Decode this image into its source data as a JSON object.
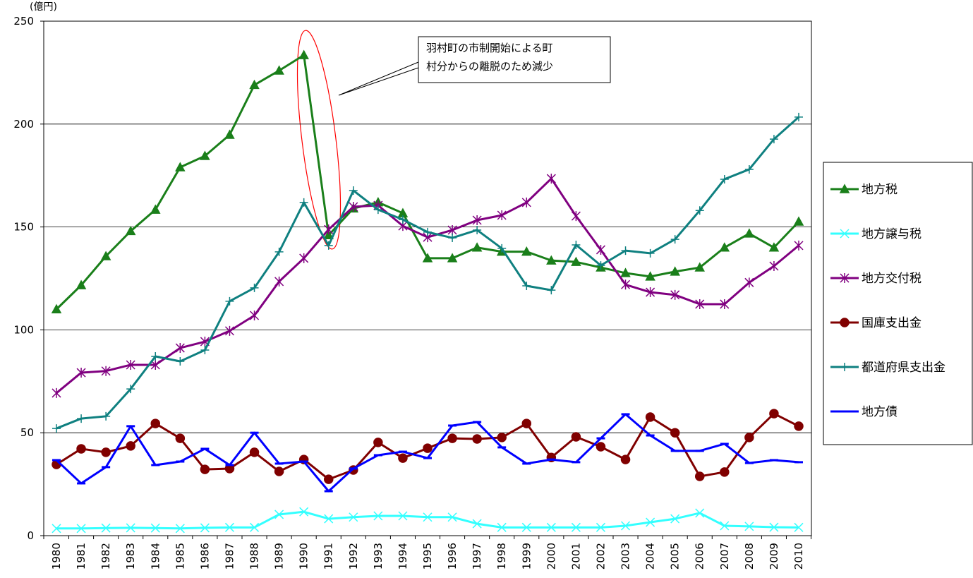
{
  "chart_data": {
    "type": "line",
    "y_label": "(億円)",
    "annotation": [
      "羽村町の市制開始による町",
      "村分からの離脱のため減少"
    ],
    "categories": [
      "1980",
      "1981",
      "1982",
      "1983",
      "1984",
      "1985",
      "1986",
      "1987",
      "1988",
      "1989",
      "1990",
      "1991",
      "1992",
      "1993",
      "1994",
      "1995",
      "1996",
      "1997",
      "1998",
      "1999",
      "2000",
      "2001",
      "2002",
      "2003",
      "2004",
      "2005",
      "2006",
      "2007",
      "2008",
      "2009",
      "2010"
    ],
    "ylim": [
      0,
      250
    ],
    "yticks": [
      0,
      50,
      100,
      150,
      200,
      250
    ],
    "grid": true,
    "legend": "right",
    "series": [
      {
        "name": "地方税",
        "color": "#1a7f1a",
        "marker": "triangle",
        "values": [
          110,
          121.7,
          135.8,
          148,
          158.4,
          179,
          184.5,
          194.8,
          219,
          226,
          233.5,
          146,
          159,
          162,
          156.7,
          134.8,
          134.8,
          140,
          138,
          138,
          133.7,
          133,
          130.3,
          127.6,
          125.9,
          128.3,
          130.3,
          140,
          146.8,
          140,
          152.6
        ]
      },
      {
        "name": "地方譲与税",
        "color": "#33ffff",
        "marker": "x",
        "values": [
          3.5,
          3.5,
          3.7,
          3.8,
          3.7,
          3.5,
          3.8,
          4,
          4,
          10.3,
          11.6,
          8.2,
          9,
          9.6,
          9.6,
          9,
          9,
          5.8,
          4,
          4,
          4,
          4,
          4,
          4.8,
          6.5,
          8.2,
          11,
          4.8,
          4.5,
          4.1,
          4
        ]
      },
      {
        "name": "地方交付税",
        "color": "#800080",
        "marker": "asterisk",
        "values": [
          69.3,
          79.2,
          80,
          83,
          83,
          91.2,
          94.3,
          99.5,
          107,
          123.5,
          134.8,
          148.8,
          159.8,
          160.5,
          150.5,
          145,
          148.5,
          153.3,
          155.7,
          161.9,
          173.5,
          155.3,
          138.9,
          122,
          118.3,
          117,
          112.5,
          112.5,
          123,
          131,
          141
        ]
      },
      {
        "name": "国庫支出金",
        "color": "#800000",
        "marker": "circle",
        "values": [
          34.6,
          42.2,
          40.5,
          43.6,
          54.5,
          47.3,
          32.2,
          32.6,
          40.5,
          31.2,
          37,
          27.4,
          31.9,
          45.3,
          37.7,
          42.5,
          47.3,
          47,
          47.7,
          54.5,
          38,
          48,
          43.2,
          37,
          57.6,
          50,
          28.8,
          30.9,
          47.7,
          59.3,
          53.2
        ]
      },
      {
        "name": "都道府県支出金",
        "color": "#0f8080",
        "marker": "plus",
        "values": [
          52.1,
          56.9,
          58,
          71.3,
          87.1,
          84.7,
          90.2,
          113.9,
          120.4,
          137.9,
          161.9,
          141,
          167.7,
          158.4,
          153.6,
          147.5,
          144.7,
          148.5,
          139.6,
          121.4,
          119.3,
          141.3,
          131.3,
          138.5,
          137.2,
          144,
          158,
          173.2,
          178,
          192.7,
          203.4
        ]
      },
      {
        "name": "地方債",
        "color": "#0000ff",
        "marker": "dash",
        "values": [
          36.7,
          25.4,
          33.3,
          53.2,
          34.3,
          36,
          42.2,
          34.3,
          50,
          35,
          36,
          21.6,
          32.6,
          39.1,
          40.8,
          37.7,
          53.5,
          55.2,
          42.9,
          35,
          37,
          35.7,
          47.3,
          59,
          48.7,
          41.2,
          41.2,
          44.6,
          35.3,
          36.7,
          35.7
        ]
      }
    ]
  }
}
